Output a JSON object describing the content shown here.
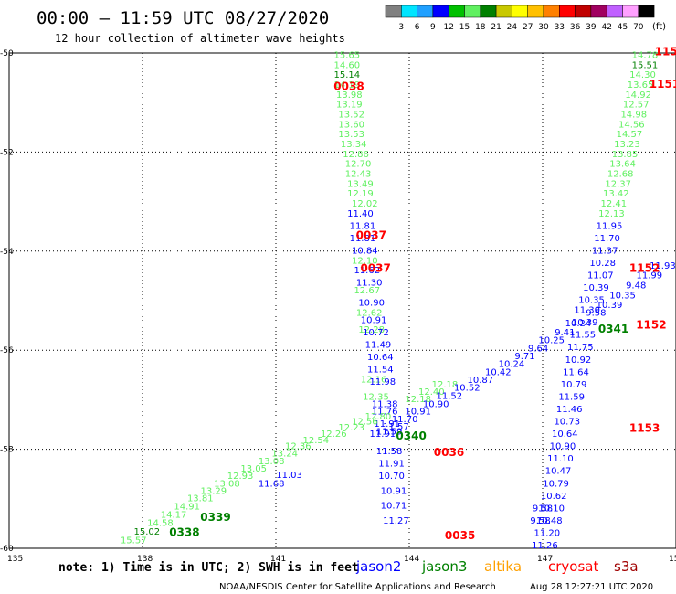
{
  "header": {
    "title": "00:00 – 11:59 UTC 08/27/2020",
    "subtitle": "12 hour collection of altimeter wave heights"
  },
  "footer": {
    "note": "note: 1) Time is in UTC; 2) SWH is in feet",
    "credit": "NOAA/NESDIS Center for Satellite Applications and Research",
    "timestamp": "Aug 28 12:27:21 UTC 2020"
  },
  "colorbar": {
    "unit": "(ft)",
    "ticks": [
      "3",
      "6",
      "9",
      "12",
      "15",
      "18",
      "21",
      "24",
      "27",
      "30",
      "33",
      "36",
      "39",
      "42",
      "45",
      "70"
    ],
    "colors": [
      "#808080",
      "#00e5ff",
      "#20a0ff",
      "#0000ff",
      "#00c000",
      "#60f060",
      "#008000",
      "#c8c800",
      "#ffff00",
      "#ffc000",
      "#ff8000",
      "#ff0000",
      "#c00000",
      "#a00060",
      "#c060ff",
      "#ffa0ff",
      "#000000"
    ]
  },
  "chart_data": {
    "type": "scatter",
    "title": "00:00 – 11:59 UTC 08/27/2020",
    "xlim": [
      135,
      150
    ],
    "ylim": [
      -60,
      -50
    ],
    "xticks": [
      135,
      138,
      141,
      144,
      147,
      150
    ],
    "yticks": [
      -50,
      -52,
      -54,
      -56,
      -58,
      -60
    ],
    "grid": true,
    "legend": [
      {
        "name": "jason2",
        "color": "#0000ff"
      },
      {
        "name": "jason3",
        "color": "#008000"
      },
      {
        "name": "altika",
        "color": "#ffa000"
      },
      {
        "name": "cryosat",
        "color": "#ff0000"
      },
      {
        "name": "s3a",
        "color": "#a00000"
      }
    ],
    "time_labels": [
      {
        "text": "0038",
        "lon": 142.3,
        "lat": -50.75,
        "sat": "cryosat"
      },
      {
        "text": "0037",
        "lon": 142.8,
        "lat": -53.75,
        "sat": "cryosat"
      },
      {
        "text": "0037",
        "lon": 142.9,
        "lat": -54.42,
        "sat": "cryosat"
      },
      {
        "text": "0340",
        "lon": 143.7,
        "lat": -57.8,
        "sat": "jason3"
      },
      {
        "text": "0036",
        "lon": 144.55,
        "lat": -58.14,
        "sat": "cryosat"
      },
      {
        "text": "0339",
        "lon": 139.3,
        "lat": -59.45,
        "sat": "jason3"
      },
      {
        "text": "0338",
        "lon": 138.6,
        "lat": -59.75,
        "sat": "jason3"
      },
      {
        "text": "0035",
        "lon": 144.8,
        "lat": -59.82,
        "sat": "cryosat"
      },
      {
        "text": "0341",
        "lon": 148.25,
        "lat": -55.65,
        "sat": "jason3"
      },
      {
        "text": "115",
        "lon": 149.52,
        "lat": -50.05,
        "sat": "cryosat"
      },
      {
        "text": "1151",
        "lon": 149.4,
        "lat": -50.7,
        "sat": "cryosat"
      },
      {
        "text": "1152",
        "lon": 148.95,
        "lat": -54.42,
        "sat": "cryosat"
      },
      {
        "text": "1152",
        "lon": 149.1,
        "lat": -55.56,
        "sat": "cryosat"
      },
      {
        "text": "1153",
        "lon": 148.95,
        "lat": -57.65,
        "sat": "cryosat"
      }
    ],
    "series": [
      {
        "name": "track A (jason3)",
        "lon": [
          142.6,
          142.6,
          142.6,
          142.6,
          142.65,
          142.65,
          142.7,
          142.7,
          142.7,
          142.75,
          142.8,
          142.85,
          142.85,
          142.9,
          142.9,
          143.0,
          143.0,
          143.05,
          143.1,
          143.15,
          143.2,
          143.25
        ],
        "lat": [
          -50.1,
          -50.3,
          -50.5,
          -50.7,
          -50.9,
          -51.1,
          -51.3,
          -51.5,
          -51.7,
          -51.9,
          -52.1,
          -52.3,
          -52.5,
          -52.7,
          -52.9,
          -53.1,
          -54.25,
          -54.85,
          -55.3,
          -55.65,
          -56.65,
          -57.0
        ],
        "values": [
          15.65,
          14.6,
          15.14,
          14.19,
          13.98,
          13.19,
          13.52,
          13.6,
          13.53,
          13.34,
          12.86,
          12.7,
          12.43,
          13.49,
          12.19,
          12.02,
          12.1,
          12.67,
          12.62,
          12.28,
          12.16,
          12.35
        ],
        "colors": [
          "#60f060",
          "#60f060",
          "#008000",
          "#60f060",
          "#60f060",
          "#60f060",
          "#60f060",
          "#60f060",
          "#60f060",
          "#60f060",
          "#60f060",
          "#60f060",
          "#60f060",
          "#60f060",
          "#60f060",
          "#60f060",
          "#60f060",
          "#60f060",
          "#60f060",
          "#60f060",
          "#60f060",
          "#60f060"
        ]
      },
      {
        "name": "track B (jason2)",
        "lon": [
          142.9,
          142.95,
          142.95,
          143.0,
          143.05,
          143.1,
          143.15,
          143.2,
          143.25,
          143.3,
          143.35,
          143.35,
          143.4,
          143.45,
          143.45,
          143.5,
          143.55,
          143.55,
          143.6,
          143.6,
          143.65,
          143.65,
          143.7
        ],
        "lat": [
          -53.3,
          -53.55,
          -53.8,
          -54.05,
          -54.45,
          -54.7,
          -55.1,
          -55.45,
          -55.7,
          -55.95,
          -56.2,
          -56.45,
          -56.7,
          -57.15,
          -57.3,
          -57.55,
          -57.7,
          -58.1,
          -58.35,
          -58.6,
          -58.9,
          -59.2,
          -59.5
        ],
        "values": [
          11.4,
          11.81,
          11.81,
          10.84,
          11.62,
          11.3,
          10.9,
          10.91,
          10.72,
          11.49,
          10.64,
          11.54,
          11.98,
          11.38,
          11.76,
          11.91,
          11.59,
          11.58,
          11.91,
          10.7,
          10.91,
          10.71,
          11.27
        ],
        "colors": [
          "#0000ff",
          "#0000ff",
          "#0000ff",
          "#0000ff",
          "#0000ff",
          "#0000ff",
          "#0000ff",
          "#0000ff",
          "#0000ff",
          "#0000ff",
          "#0000ff",
          "#0000ff",
          "#0000ff",
          "#0000ff",
          "#0000ff",
          "#0000ff",
          "#0000ff",
          "#0000ff",
          "#0000ff",
          "#0000ff",
          "#0000ff",
          "#0000ff",
          "#0000ff"
        ]
      },
      {
        "name": "track C (jason3)",
        "lon": [
          137.8,
          138.1,
          138.4,
          138.7,
          139.0,
          139.3,
          139.6,
          139.9,
          140.2,
          140.5,
          140.9,
          141.2,
          141.5,
          141.9,
          142.3,
          142.7,
          143.0,
          143.3,
          144.2,
          144.5,
          144.8
        ],
        "lat": [
          -59.9,
          -59.72,
          -59.55,
          -59.38,
          -59.22,
          -59.05,
          -58.9,
          -58.75,
          -58.6,
          -58.45,
          -58.3,
          -58.15,
          -58.0,
          -57.88,
          -57.75,
          -57.62,
          -57.5,
          -57.4,
          -57.05,
          -56.9,
          -56.75
        ],
        "values": [
          15.57,
          15.02,
          14.58,
          14.17,
          14.91,
          13.81,
          13.29,
          13.08,
          12.93,
          13.05,
          13.08,
          13.24,
          12.36,
          12.54,
          12.26,
          12.23,
          12.56,
          12.8,
          12.18,
          12.4,
          12.18
        ],
        "colors": [
          "#60f060",
          "#008000",
          "#60f060",
          "#60f060",
          "#60f060",
          "#60f060",
          "#60f060",
          "#60f060",
          "#60f060",
          "#60f060",
          "#60f060",
          "#60f060",
          "#60f060",
          "#60f060",
          "#60f060",
          "#60f060",
          "#60f060",
          "#60f060",
          "#60f060",
          "#60f060",
          "#60f060"
        ]
      },
      {
        "name": "track D (jason2)",
        "lon": [
          140.9,
          141.3,
          143.4,
          143.7,
          143.9,
          144.2,
          144.6,
          144.9,
          145.3,
          145.6,
          146.0,
          146.3,
          146.6,
          146.9,
          147.2,
          147.5,
          147.8,
          148.2,
          148.5,
          148.8,
          149.1,
          149.4,
          149.7
        ],
        "lat": [
          -58.75,
          -58.58,
          -57.75,
          -57.6,
          -57.45,
          -57.3,
          -57.15,
          -56.98,
          -56.82,
          -56.66,
          -56.5,
          -56.34,
          -56.18,
          -56.02,
          -55.86,
          -55.7,
          -55.52,
          -55.3,
          -55.15,
          -54.95,
          -54.75,
          -54.55,
          -54.35
        ],
        "values": [
          11.68,
          11.03,
          11.91,
          11.57,
          11.7,
          10.91,
          10.9,
          11.52,
          10.52,
          10.87,
          10.42,
          10.24,
          9.71,
          9.64,
          10.25,
          9.41,
          10.24,
          9.58,
          10.39,
          10.35,
          9.48,
          11.99,
          11.93
        ],
        "colors": [
          "#0000ff",
          "#0000ff",
          "#0000ff",
          "#0000ff",
          "#0000ff",
          "#0000ff",
          "#0000ff",
          "#0000ff",
          "#0000ff",
          "#0000ff",
          "#0000ff",
          "#0000ff",
          "#0000ff",
          "#0000ff",
          "#0000ff",
          "#0000ff",
          "#0000ff",
          "#0000ff",
          "#0000ff",
          "#0000ff",
          "#0000ff",
          "#0000ff",
          "#0000ff"
        ]
      },
      {
        "name": "track E (jason3)",
        "lon": [
          149.3,
          149.3,
          149.25,
          149.2,
          149.15,
          149.1,
          149.05,
          149.0,
          148.95,
          148.9,
          148.85,
          148.8,
          148.75,
          148.7,
          148.65,
          148.6,
          148.55
        ],
        "lat": [
          -50.1,
          -50.3,
          -50.5,
          -50.7,
          -50.9,
          -51.1,
          -51.3,
          -51.5,
          -51.7,
          -51.9,
          -52.1,
          -52.3,
          -52.5,
          -52.7,
          -52.9,
          -53.1,
          -53.3
        ],
        "values": [
          14.78,
          15.51,
          14.3,
          13.65,
          14.92,
          12.57,
          14.98,
          14.56,
          14.57,
          13.23,
          13.85,
          13.64,
          12.68,
          12.37,
          13.42,
          12.41,
          12.13
        ],
        "colors": [
          "#60f060",
          "#008000",
          "#60f060",
          "#60f060",
          "#60f060",
          "#60f060",
          "#60f060",
          "#60f060",
          "#60f060",
          "#60f060",
          "#60f060",
          "#60f060",
          "#60f060",
          "#60f060",
          "#60f060",
          "#60f060",
          "#60f060"
        ]
      },
      {
        "name": "track F (jason2)",
        "lon": [
          148.5,
          148.45,
          148.4,
          148.35,
          148.3,
          148.2,
          148.1,
          148.0,
          147.95,
          147.9,
          147.85,
          147.8,
          147.75,
          147.7,
          147.65,
          147.6,
          147.55,
          147.5,
          147.45,
          147.4,
          147.35,
          147.3,
          147.25,
          147.2
        ],
        "lat": [
          -53.55,
          -53.8,
          -54.05,
          -54.3,
          -54.55,
          -54.8,
          -55.05,
          -55.25,
          -55.5,
          -55.75,
          -56.0,
          -56.25,
          -56.5,
          -56.75,
          -57.0,
          -57.25,
          -57.5,
          -57.75,
          -58.0,
          -58.25,
          -58.5,
          -58.75,
          -59.0,
          -59.25
        ],
        "values": [
          11.95,
          11.7,
          11.37,
          10.28,
          11.07,
          10.39,
          10.35,
          11.3,
          10.39,
          11.55,
          11.75,
          10.92,
          11.64,
          10.79,
          11.59,
          11.46,
          10.73,
          10.64,
          10.9,
          11.1,
          10.47,
          10.79,
          10.62,
          10.1
        ],
        "colors": [
          "#0000ff",
          "#0000ff",
          "#0000ff",
          "#0000ff",
          "#0000ff",
          "#0000ff",
          "#0000ff",
          "#0000ff",
          "#0000ff",
          "#0000ff",
          "#0000ff",
          "#0000ff",
          "#0000ff",
          "#0000ff",
          "#0000ff",
          "#0000ff",
          "#0000ff",
          "#0000ff",
          "#0000ff",
          "#0000ff",
          "#0000ff",
          "#0000ff",
          "#0000ff",
          "#0000ff"
        ]
      },
      {
        "name": "track G (jason2)",
        "lon": [
          147.15,
          147.1,
          147.05,
          147.0,
          146.95
        ],
        "lat": [
          -59.5,
          -59.75,
          -60.0,
          -59.25,
          -59.5
        ],
        "values": [
          10.48,
          11.2,
          11.26,
          9.58,
          9.58
        ],
        "colors": [
          "#0000ff",
          "#0000ff",
          "#0000ff",
          "#0000ff",
          "#0000ff"
        ]
      }
    ]
  }
}
